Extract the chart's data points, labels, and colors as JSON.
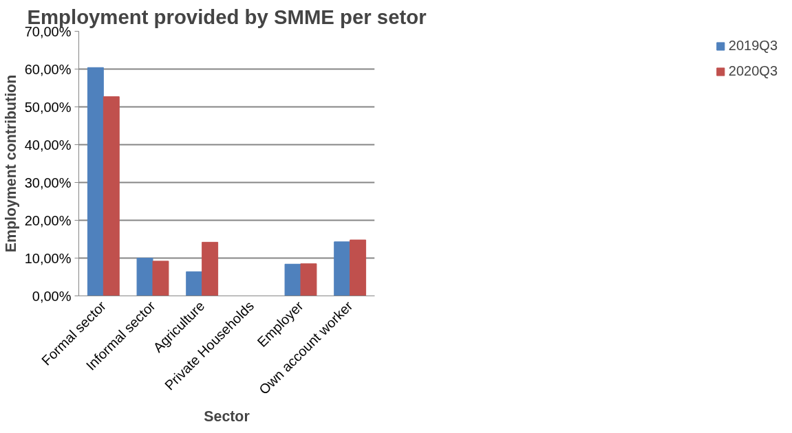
{
  "chart_data": {
    "type": "bar",
    "title": "Employment provided by SMME per setor",
    "xlabel": "Sector",
    "ylabel": "Employment contribution",
    "categories": [
      "Formal sector",
      "Informal sector",
      "Agriculture",
      "Private Households",
      "Employer",
      "Own account worker"
    ],
    "series": [
      {
        "name": "2019Q3",
        "color": "#4f81bd",
        "values": [
          60.4,
          10.0,
          6.4,
          0,
          8.4,
          14.3
        ]
      },
      {
        "name": "2020Q3",
        "color": "#c0504d",
        "values": [
          52.7,
          9.2,
          14.2,
          0,
          8.5,
          14.8
        ]
      }
    ],
    "ylim": [
      0,
      70
    ],
    "yticks": [
      {
        "value": 0,
        "label": "0,00%"
      },
      {
        "value": 10,
        "label": "10,00%"
      },
      {
        "value": 20,
        "label": "20,00%"
      },
      {
        "value": 30,
        "label": "30,00%"
      },
      {
        "value": 40,
        "label": "40,00%"
      },
      {
        "value": 50,
        "label": "50,00%"
      },
      {
        "value": 60,
        "label": "60,00%"
      },
      {
        "value": 70,
        "label": "70,00%"
      }
    ],
    "grid": "y",
    "legend": "right"
  }
}
